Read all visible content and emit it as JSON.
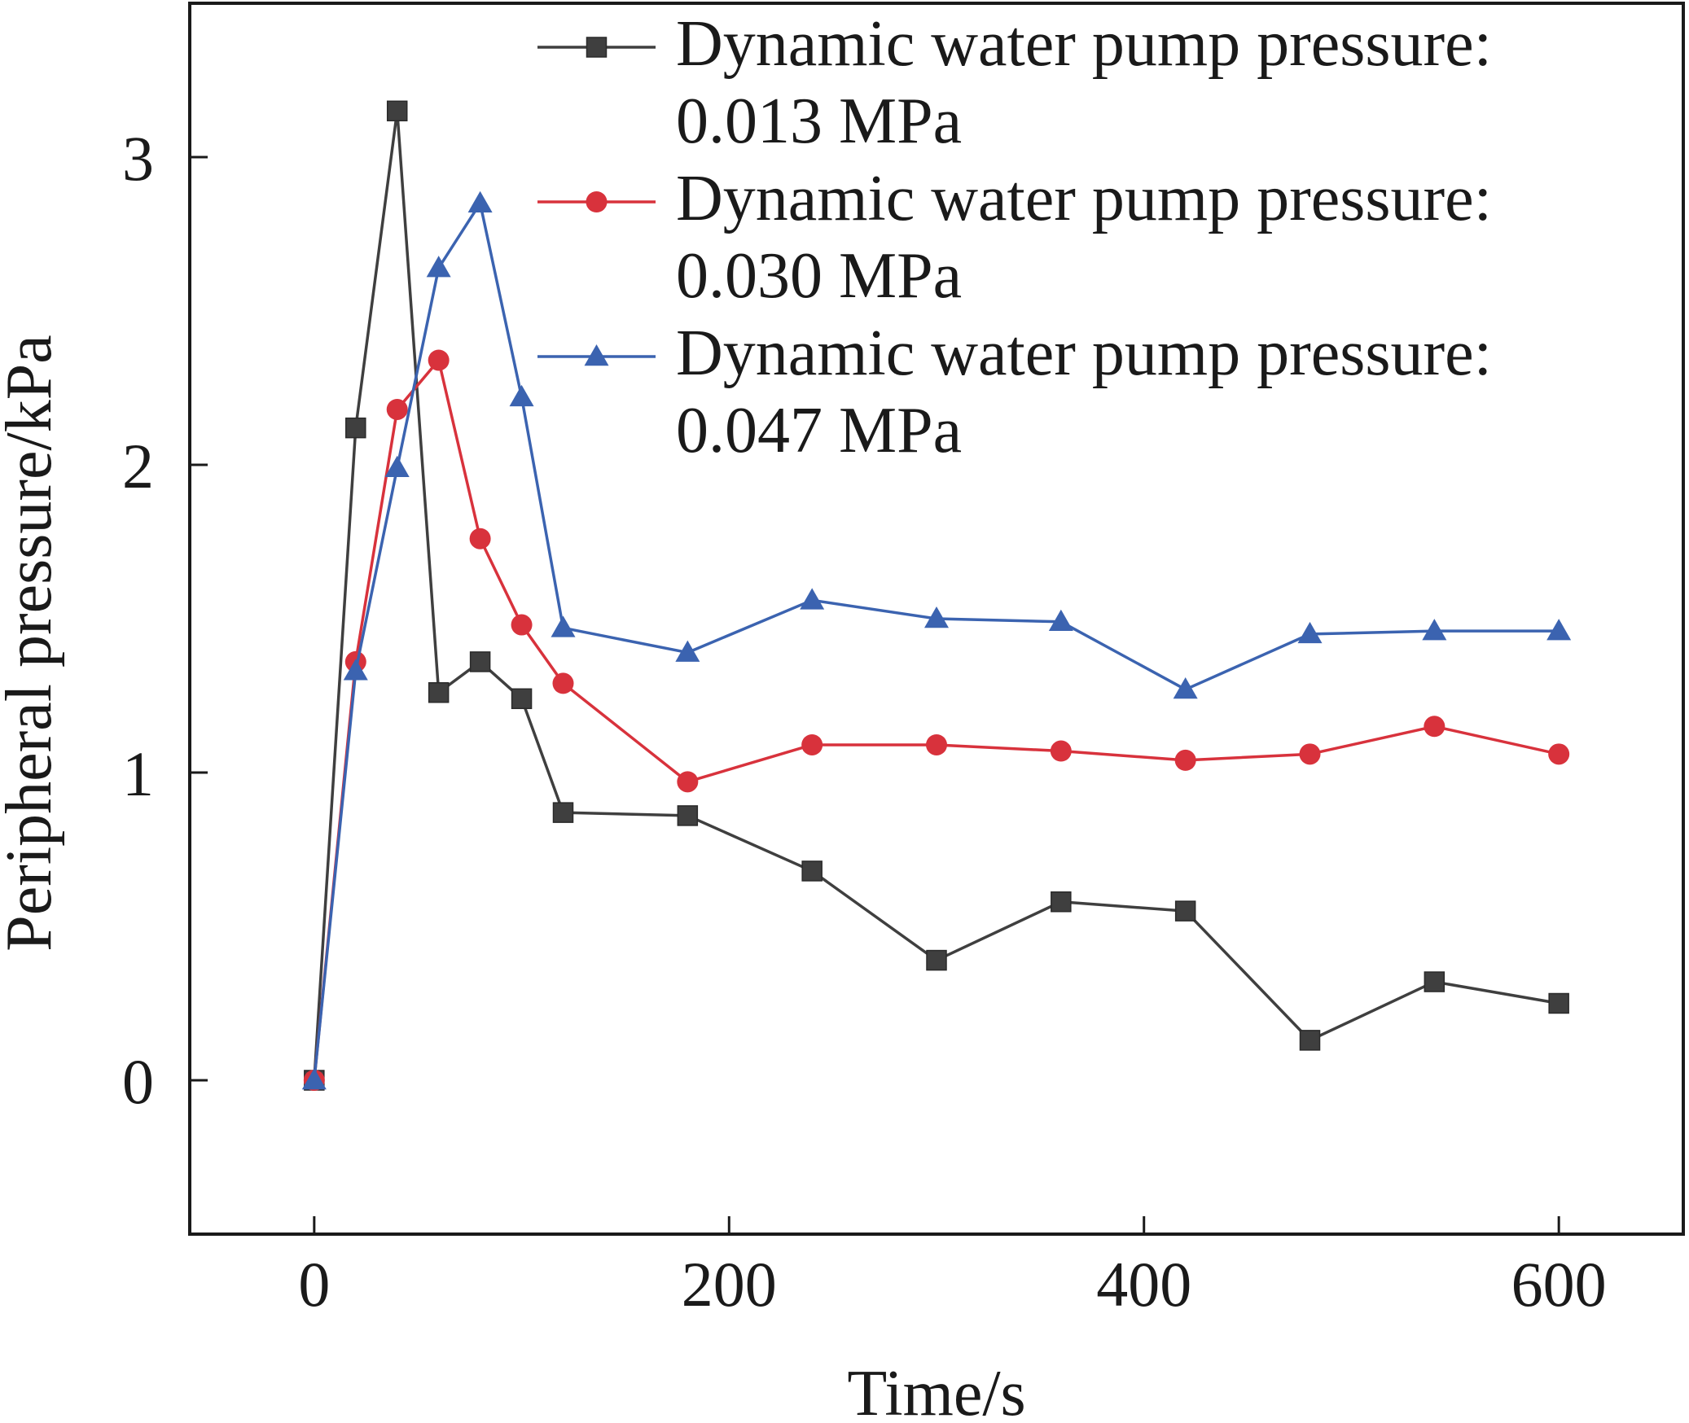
{
  "chart_data": {
    "type": "line",
    "title": "",
    "xlabel": "Time/s",
    "ylabel": "Peripheral pressure/kPa",
    "xlim": [
      -60,
      660
    ],
    "ylim": [
      -0.5,
      3.5
    ],
    "xticks": [
      0,
      200,
      400,
      600
    ],
    "yticks": [
      0,
      1,
      2,
      3
    ],
    "grid": false,
    "legend_position": "top-right",
    "x": [
      0,
      20,
      40,
      60,
      80,
      100,
      120,
      180,
      240,
      300,
      360,
      420,
      480,
      540,
      600
    ],
    "series": [
      {
        "name": "Dynamic water pump pressure: 0.013 MPa",
        "legend_lines": [
          "Dynamic water pump pressure:",
          "0.013 MPa"
        ],
        "marker": "square",
        "color": "#3f3f3f",
        "values": [
          0.0,
          2.12,
          3.15,
          1.26,
          1.36,
          1.24,
          0.87,
          0.86,
          0.68,
          0.39,
          0.58,
          0.55,
          0.13,
          0.32,
          0.25
        ]
      },
      {
        "name": "Dynamic water pump pressure: 0.030 MPa",
        "legend_lines": [
          "Dynamic water pump pressure:",
          "0.030 MPa"
        ],
        "marker": "circle",
        "color": "#d8323c",
        "values": [
          0.0,
          1.36,
          2.18,
          2.34,
          1.76,
          1.48,
          1.29,
          0.97,
          1.09,
          1.09,
          1.07,
          1.04,
          1.06,
          1.15,
          1.06
        ]
      },
      {
        "name": "Dynamic water pump pressure: 0.047 MPa",
        "legend_lines": [
          "Dynamic water pump pressure:",
          "0.047 MPa"
        ],
        "marker": "triangle",
        "color": "#3b63b0",
        "values": [
          0.0,
          1.33,
          1.99,
          2.64,
          2.85,
          2.22,
          1.47,
          1.39,
          1.56,
          1.5,
          1.49,
          1.27,
          1.45,
          1.46,
          1.46
        ]
      }
    ]
  }
}
